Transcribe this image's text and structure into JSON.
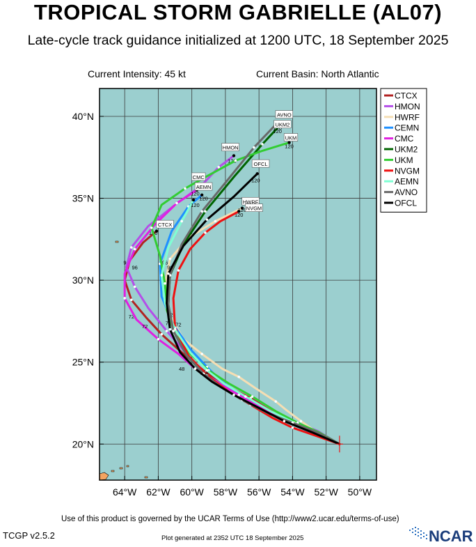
{
  "title": "TROPICAL STORM GABRIELLE (AL07)",
  "subtitle": "Late-cycle track guidance initialized at 1200 UTC, 18 September 2025",
  "current_intensity": "Current Intensity: 45 kt",
  "current_basin": "Current Basin: North Atlantic",
  "footer_terms": "Use of this product is governed by the UCAR Terms of Use (http://www2.ucar.edu/terms-of-use)",
  "version": "TCGP v2.5.2",
  "generated": "Plot generated at 2352 UTC   18 September 2025",
  "logo_text": "NCAR",
  "colors": {
    "ocean": "#9bcfcf",
    "land": "#f4a460",
    "grid": "#3a3a3a"
  },
  "chart_data": {
    "type": "line",
    "title": "TROPICAL STORM GABRIELLE (AL07)",
    "xlabel": "",
    "ylabel": "",
    "xlim": [
      -65.5,
      -49.0
    ],
    "ylim": [
      17.8,
      41.7
    ],
    "grid": true,
    "legend_position": "top-right",
    "x_ticks": [
      -64,
      -62,
      -60,
      -58,
      -56,
      -54,
      -52,
      -50
    ],
    "y_ticks": [
      20,
      25,
      30,
      35,
      40
    ],
    "x_tick_labels": [
      "64°W",
      "62°W",
      "60°W",
      "58°W",
      "56°W",
      "54°W",
      "52°W",
      "50°W"
    ],
    "y_tick_labels": [
      "20°N",
      "25°N",
      "30°N",
      "35°N",
      "40°N"
    ],
    "series": [
      {
        "name": "CTCX",
        "color": "#b22222",
        "lon": [
          -51.2,
          -52.4,
          -53.8,
          -55.1,
          -56.5,
          -58.0,
          -59.2,
          -60.5,
          -61.8,
          -62.7,
          -63.6,
          -64.0,
          -63.7,
          -62.9,
          -62.1
        ],
        "lat": [
          20.0,
          20.7,
          21.3,
          21.9,
          22.8,
          23.6,
          24.4,
          25.5,
          26.7,
          27.7,
          28.8,
          30.0,
          31.2,
          32.3,
          33.0
        ],
        "tau_labels": [
          "48",
          "72",
          "96",
          "120"
        ],
        "tau_lon": [
          -59.3,
          -63.6,
          -63.9,
          -62.3
        ],
        "tau_lat": [
          24.3,
          27.8,
          31.1,
          32.9
        ]
      },
      {
        "name": "HMON",
        "color": "#b44ee8",
        "lon": [
          -51.2,
          -52.5,
          -54.0,
          -55.5,
          -57.0,
          -58.3,
          -59.3,
          -60.3,
          -61.5,
          -62.6,
          -63.4,
          -63.9,
          -63.6,
          -62.6,
          -61.0,
          -59.4,
          -58.4,
          -57.5
        ],
        "lat": [
          20.0,
          20.8,
          21.4,
          22.0,
          23.0,
          23.7,
          24.3,
          25.5,
          26.9,
          28.3,
          29.6,
          30.8,
          32.0,
          33.3,
          34.6,
          35.8,
          36.9,
          37.6
        ],
        "tau_labels": [
          "120"
        ],
        "tau_lon": [
          -57.6
        ],
        "tau_lat": [
          37.3
        ]
      },
      {
        "name": "HWRF",
        "color": "#f5deb3",
        "lon": [
          -51.2,
          -52.4,
          -53.5,
          -54.4,
          -55.0,
          -56.2,
          -57.2,
          -58.2,
          -59.4,
          -60.5,
          -61.4,
          -61.6,
          -61.3,
          -60.2,
          -58.6,
          -57.0
        ],
        "lat": [
          20.0,
          20.6,
          21.4,
          22.1,
          22.6,
          23.4,
          24.1,
          24.6,
          25.5,
          26.4,
          28.0,
          29.7,
          31.3,
          32.6,
          33.6,
          34.4
        ],
        "tau_labels": [
          "48",
          "72",
          "96",
          "120"
        ],
        "tau_lon": [
          -59.1,
          -61.3,
          -61.6,
          -57.2
        ],
        "tau_lat": [
          24.5,
          27.9,
          31.1,
          34.0
        ]
      },
      {
        "name": "CEMN",
        "color": "#1e90ff",
        "lon": [
          -51.2,
          -52.6,
          -54.0,
          -55.4,
          -56.9,
          -58.2,
          -59.1,
          -60.1,
          -61.1,
          -61.8,
          -61.9,
          -61.2,
          -60.2,
          -59.4
        ],
        "lat": [
          20.0,
          20.6,
          21.2,
          21.9,
          22.9,
          23.8,
          24.7,
          25.8,
          27.3,
          29.0,
          31.0,
          33.0,
          34.5,
          35.2
        ],
        "tau_labels": [
          "120"
        ],
        "tau_lon": [
          -59.3
        ],
        "tau_lat": [
          35.0
        ]
      },
      {
        "name": "CMC",
        "color": "#e020e0",
        "lon": [
          -51.2,
          -52.6,
          -54.1,
          -55.6,
          -57.2,
          -58.6,
          -59.8,
          -60.8,
          -62.0,
          -63.3,
          -64.0,
          -64.0,
          -63.4,
          -62.2,
          -60.9,
          -59.7
        ],
        "lat": [
          20.0,
          20.7,
          21.4,
          22.1,
          23.0,
          23.8,
          24.6,
          25.5,
          26.4,
          27.6,
          28.9,
          30.4,
          31.9,
          33.4,
          34.7,
          35.5
        ],
        "tau_labels": [
          "48",
          "72",
          "96",
          "120"
        ],
        "tau_lon": [
          -60.6,
          -62.8,
          -63.4,
          -59.8
        ],
        "tau_lat": [
          24.6,
          27.2,
          30.8,
          35.3
        ]
      },
      {
        "name": "UKM2",
        "color": "#006400",
        "lon": [
          -51.2,
          -52.5,
          -54.0,
          -55.5,
          -57.0,
          -58.3,
          -59.3,
          -60.3,
          -61.1,
          -61.4,
          -61.3,
          -60.5,
          -59.2,
          -57.5,
          -55.8,
          -54.8
        ],
        "lat": [
          20.0,
          20.7,
          21.3,
          21.9,
          22.7,
          23.5,
          24.3,
          25.4,
          26.9,
          28.5,
          30.3,
          32.2,
          34.2,
          36.3,
          38.3,
          39.4
        ],
        "tau_labels": [
          "72",
          "120"
        ],
        "tau_lon": [
          -61.4,
          -54.9
        ],
        "tau_lat": [
          27.4,
          39.1
        ]
      },
      {
        "name": "UKM",
        "color": "#32cd32",
        "lon": [
          -51.2,
          -52.4,
          -53.7,
          -55.0,
          -56.4,
          -57.8,
          -59.0,
          -60.1,
          -61.0,
          -61.5,
          -61.6,
          -61.9,
          -62.4,
          -61.8,
          -60.4,
          -59.0,
          -57.4,
          -55.8,
          -54.2
        ],
        "lat": [
          20.0,
          20.7,
          21.3,
          22.0,
          22.9,
          23.7,
          24.5,
          25.5,
          26.7,
          28.2,
          29.8,
          31.5,
          33.2,
          34.6,
          35.6,
          36.4,
          37.3,
          37.9,
          38.4
        ],
        "tau_labels": [
          "120"
        ],
        "tau_lon": [
          -54.2
        ],
        "tau_lat": [
          38.2
        ]
      },
      {
        "name": "NVGM",
        "color": "#ee1111",
        "lon": [
          -51.2,
          -52.6,
          -54.0,
          -55.2,
          -56.5,
          -57.8,
          -59.1,
          -60.2,
          -61.0,
          -61.1,
          -60.8,
          -60.1,
          -59.2,
          -58.3,
          -57.2
        ],
        "lat": [
          20.0,
          20.5,
          21.0,
          21.6,
          22.4,
          23.2,
          24.2,
          25.4,
          27.1,
          28.9,
          30.6,
          31.9,
          32.9,
          33.6,
          34.2
        ],
        "tau_labels": [
          "48",
          "72",
          "96",
          "120"
        ],
        "tau_lon": [
          -59.2,
          -60.8,
          -61.3,
          -57.0
        ],
        "tau_lat": [
          24.3,
          27.3,
          30.8,
          34.3
        ]
      },
      {
        "name": "AEMN",
        "color": "#7fffd4",
        "lon": [
          -51.2,
          -52.5,
          -53.9,
          -55.3,
          -56.8,
          -58.1,
          -59.1,
          -60.1,
          -61.0,
          -61.6,
          -61.8,
          -61.4,
          -60.6,
          -59.9
        ],
        "lat": [
          20.0,
          20.6,
          21.3,
          22.0,
          22.9,
          23.7,
          24.5,
          25.6,
          27.0,
          28.6,
          30.3,
          32.0,
          33.6,
          34.9
        ],
        "tau_labels": [
          "120"
        ],
        "tau_lon": [
          -59.8
        ],
        "tau_lat": [
          34.6
        ]
      },
      {
        "name": "AVNO",
        "color": "#696969",
        "lon": [
          -51.2,
          -52.5,
          -54.0,
          -55.5,
          -57.0,
          -58.3,
          -59.3,
          -60.3,
          -61.1,
          -61.4,
          -61.3,
          -60.6,
          -59.4,
          -57.8,
          -56.3,
          -55.0
        ],
        "lat": [
          20.0,
          20.7,
          21.3,
          21.9,
          22.7,
          23.5,
          24.3,
          25.4,
          26.9,
          28.5,
          30.3,
          32.2,
          34.2,
          36.2,
          38.1,
          39.5
        ],
        "tau_labels": [
          "120"
        ],
        "tau_lon": [
          -54.9
        ],
        "tau_lat": [
          39.3
        ]
      },
      {
        "name": "OFCL",
        "color": "#000000",
        "lon": [
          -51.2,
          -52.8,
          -54.5,
          -56.0,
          -57.5,
          -58.8,
          -59.8,
          -60.7,
          -61.3,
          -61.5,
          -61.4,
          -60.5,
          -59.1,
          -57.5,
          -56.1
        ],
        "lat": [
          20.0,
          20.7,
          21.4,
          22.2,
          23.0,
          23.8,
          24.6,
          25.6,
          27.0,
          28.6,
          30.4,
          32.1,
          33.7,
          35.1,
          36.5
        ],
        "tau_labels": [
          "120"
        ],
        "tau_lon": [
          -56.2
        ],
        "tau_lat": [
          36.1
        ]
      }
    ],
    "endpoint_labels": [
      {
        "text": "AVNO",
        "lon": -54.5,
        "lat": 40.1
      },
      {
        "text": "UKM2",
        "lon": -54.6,
        "lat": 39.5
      },
      {
        "text": "UKM",
        "lon": -54.1,
        "lat": 38.7
      },
      {
        "text": "HMON",
        "lon": -57.7,
        "lat": 38.1
      },
      {
        "text": "OFCL",
        "lon": -55.9,
        "lat": 37.1
      },
      {
        "text": "CMC",
        "lon": -59.6,
        "lat": 36.3
      },
      {
        "text": "AEMN",
        "lon": -59.3,
        "lat": 35.7
      },
      {
        "text": "HWRF",
        "lon": -56.5,
        "lat": 34.8
      },
      {
        "text": "NVGM",
        "lon": -56.3,
        "lat": 34.4
      },
      {
        "text": "CTCX",
        "lon": -61.6,
        "lat": 33.4
      }
    ]
  }
}
